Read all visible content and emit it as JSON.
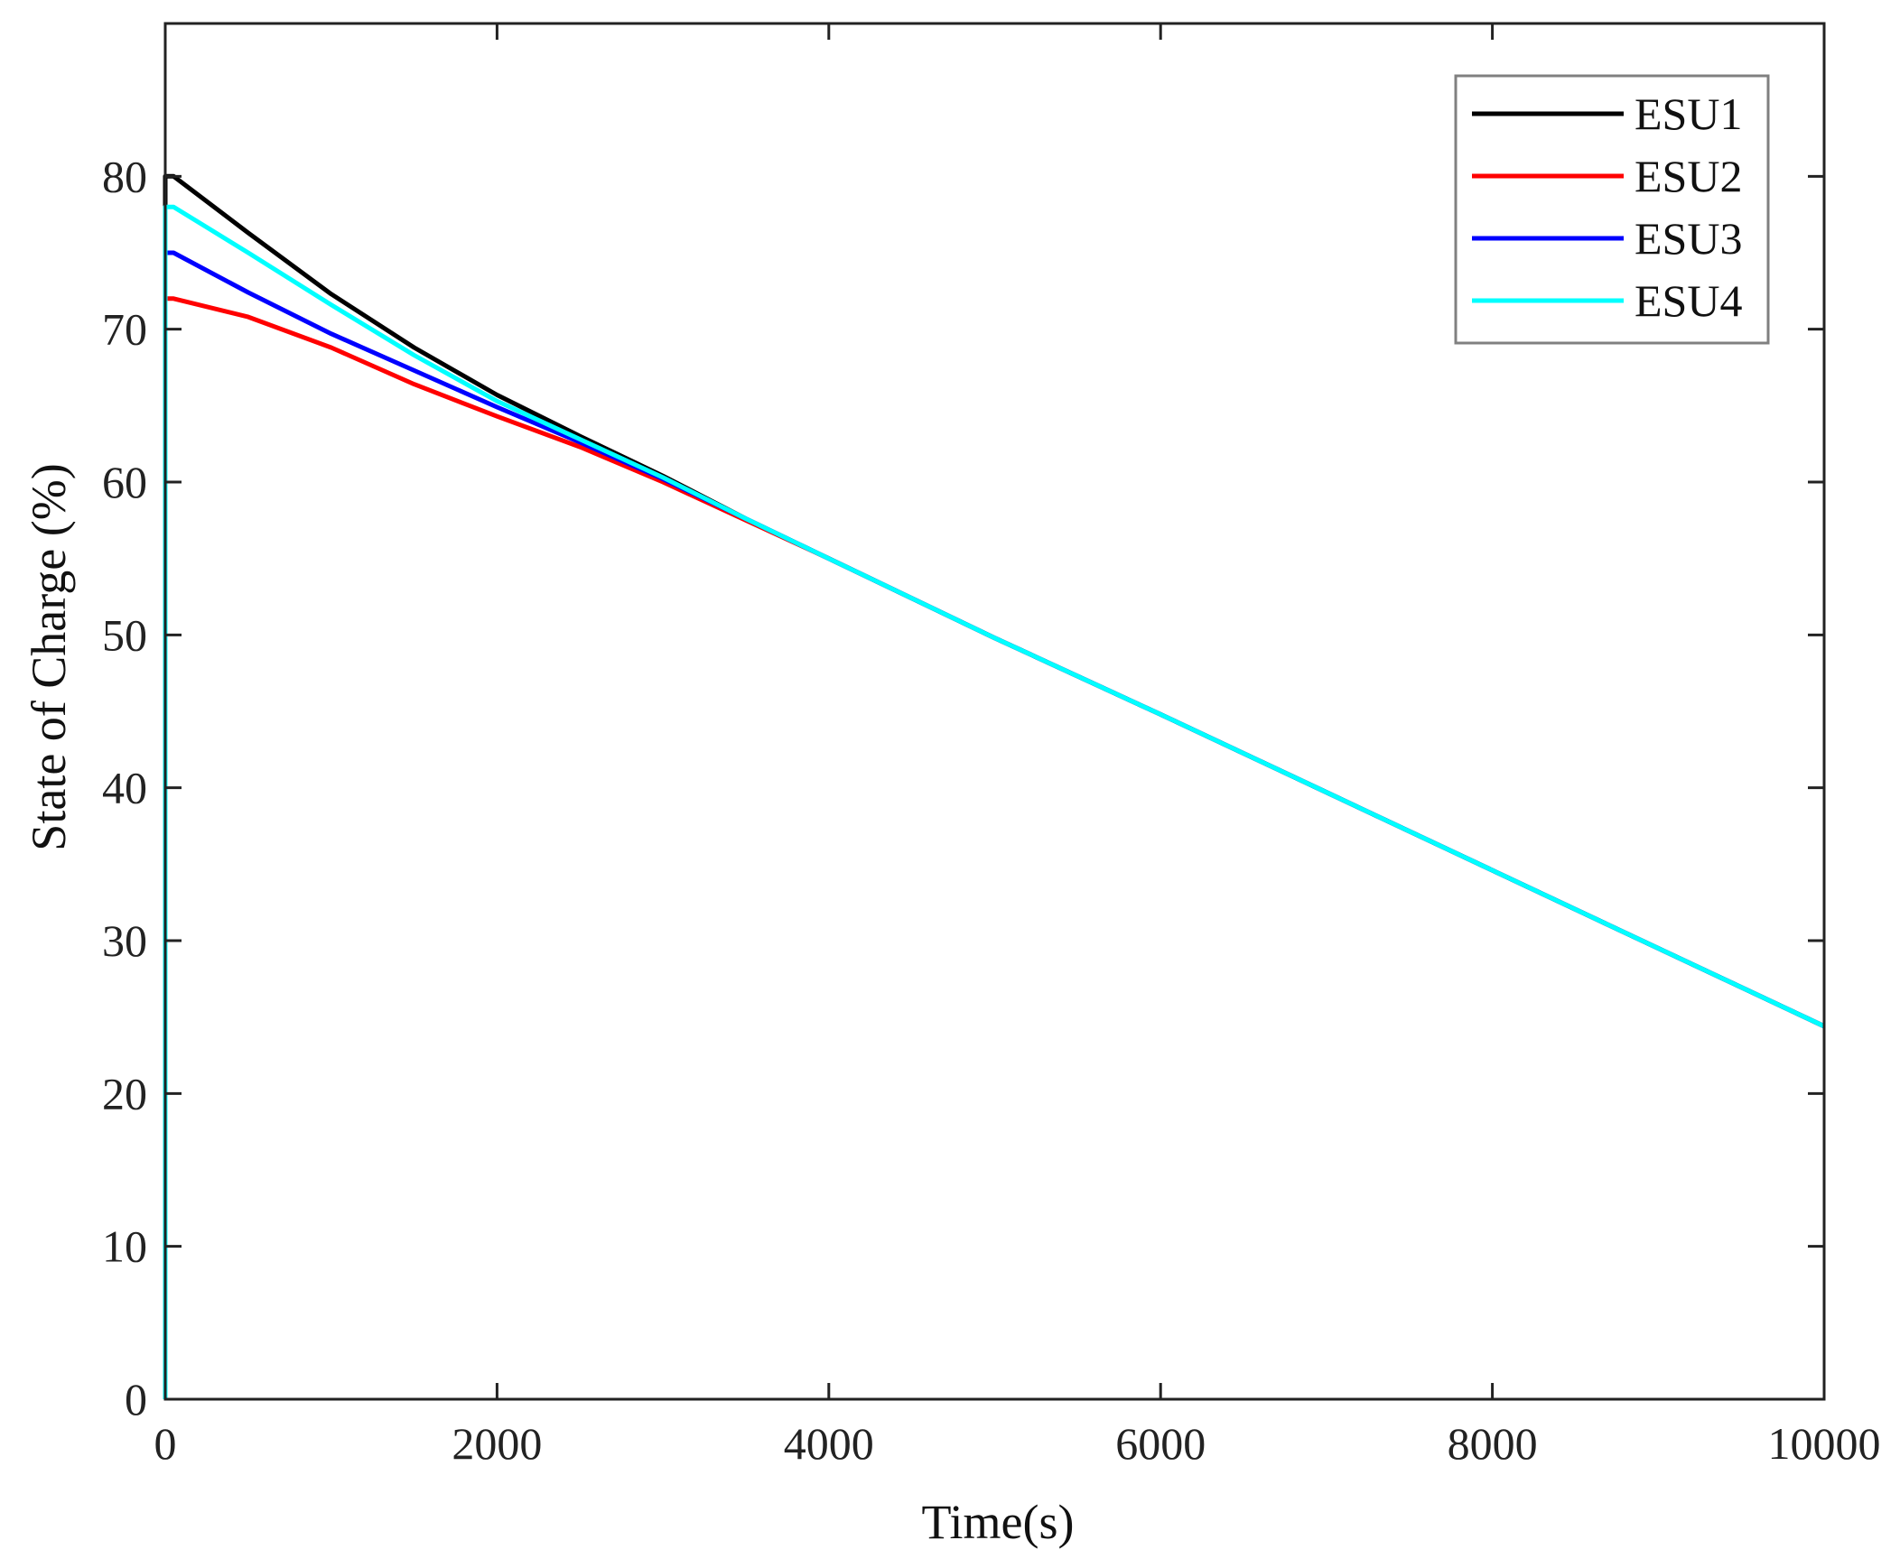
{
  "chart_data": {
    "type": "line",
    "xlabel": "Time(s)",
    "ylabel": "State of Charge (%)",
    "xlim": [
      0,
      10000
    ],
    "ylim": [
      0,
      90
    ],
    "x_ticks": [
      0,
      2000,
      4000,
      6000,
      8000,
      10000
    ],
    "y_ticks": [
      0,
      10,
      20,
      30,
      40,
      50,
      60,
      70,
      80
    ],
    "grid": false,
    "legend_position": "top-right",
    "series": [
      {
        "name": "ESU1",
        "color": "#000000",
        "x": [
          0,
          0,
          50,
          500,
          1000,
          1500,
          2000,
          2500,
          3000,
          3500,
          4000,
          5000,
          6000,
          7000,
          8000,
          9000,
          10000
        ],
        "y": [
          78,
          80,
          80,
          76.3,
          72.3,
          68.8,
          65.7,
          63.0,
          60.4,
          57.6,
          55.0,
          49.8,
          44.8,
          39.7,
          34.6,
          29.5,
          24.4
        ]
      },
      {
        "name": "ESU2",
        "color": "#ff0000",
        "x": [
          0,
          0,
          50,
          500,
          1000,
          1500,
          2000,
          2500,
          3000,
          3500,
          4000,
          5000,
          6000,
          7000,
          8000,
          9000,
          10000
        ],
        "y": [
          72,
          72,
          72,
          70.8,
          68.8,
          66.4,
          64.3,
          62.3,
          60.0,
          57.5,
          55.0,
          49.8,
          44.8,
          39.7,
          34.6,
          29.5,
          24.4
        ]
      },
      {
        "name": "ESU3",
        "color": "#0000ff",
        "x": [
          0,
          0,
          50,
          500,
          1000,
          1500,
          2000,
          2500,
          3000,
          3500,
          4000,
          5000,
          6000,
          7000,
          8000,
          9000,
          10000
        ],
        "y": [
          75,
          75,
          75,
          72.4,
          69.7,
          67.3,
          64.9,
          62.6,
          60.2,
          57.6,
          55.0,
          49.8,
          44.8,
          39.7,
          34.6,
          29.5,
          24.4
        ]
      },
      {
        "name": "ESU4",
        "color": "#00ffff",
        "x": [
          0,
          0,
          50,
          500,
          1000,
          1500,
          2000,
          2500,
          3000,
          3500,
          4000,
          5000,
          6000,
          7000,
          8000,
          9000,
          10000
        ],
        "y": [
          0,
          78,
          78,
          75.0,
          71.6,
          68.3,
          65.3,
          62.8,
          60.3,
          57.6,
          55.0,
          49.8,
          44.8,
          39.7,
          34.6,
          29.5,
          24.4
        ]
      }
    ]
  }
}
